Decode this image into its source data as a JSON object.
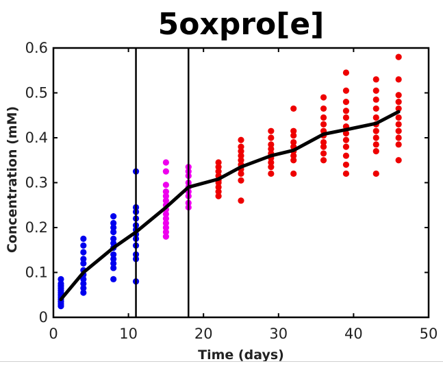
{
  "chart_data": {
    "type": "scatter",
    "title": "5oxpro[e]",
    "xlabel": "Time (days)",
    "ylabel": "Concentration (mM)",
    "xlim": [
      0,
      50
    ],
    "ylim": [
      0,
      0.6
    ],
    "xticks": [
      0,
      10,
      20,
      30,
      40,
      50
    ],
    "yticks": [
      0,
      0.1,
      0.2,
      0.3,
      0.4,
      0.5,
      0.6
    ],
    "xtick_labels": [
      "0",
      "10",
      "20",
      "30",
      "40",
      "50"
    ],
    "ytick_labels": [
      "0",
      "0.1",
      "0.2",
      "0.3",
      "0.4",
      "0.5",
      "0.6"
    ],
    "grid": false,
    "vertical_lines": [
      11,
      18
    ],
    "colors": {
      "phase1": "#0000ee",
      "phase2": "#ee00ee",
      "phase3": "#ee0000",
      "mean_line": "#000000"
    },
    "scatter_groups": [
      {
        "color_key": "phase1",
        "points": [
          [
            1,
            0.085
          ],
          [
            1,
            0.075
          ],
          [
            1,
            0.07
          ],
          [
            1,
            0.065
          ],
          [
            1,
            0.06
          ],
          [
            1,
            0.055
          ],
          [
            1,
            0.05
          ],
          [
            1,
            0.045
          ],
          [
            1,
            0.04
          ],
          [
            1,
            0.035
          ],
          [
            1,
            0.03
          ],
          [
            1,
            0.025
          ],
          [
            4,
            0.175
          ],
          [
            4,
            0.16
          ],
          [
            4,
            0.145
          ],
          [
            4,
            0.13
          ],
          [
            4,
            0.12
          ],
          [
            4,
            0.105
          ],
          [
            4,
            0.095
          ],
          [
            4,
            0.085
          ],
          [
            4,
            0.075
          ],
          [
            4,
            0.065
          ],
          [
            4,
            0.055
          ],
          [
            8,
            0.225
          ],
          [
            8,
            0.21
          ],
          [
            8,
            0.2
          ],
          [
            8,
            0.19
          ],
          [
            8,
            0.175
          ],
          [
            8,
            0.165
          ],
          [
            8,
            0.155
          ],
          [
            8,
            0.14
          ],
          [
            8,
            0.13
          ],
          [
            8,
            0.12
          ],
          [
            8,
            0.11
          ],
          [
            8,
            0.085
          ],
          [
            11,
            0.325
          ],
          [
            11,
            0.245
          ],
          [
            11,
            0.235
          ],
          [
            11,
            0.22
          ],
          [
            11,
            0.205
          ],
          [
            11,
            0.195
          ],
          [
            11,
            0.185
          ],
          [
            11,
            0.175
          ],
          [
            11,
            0.16
          ],
          [
            11,
            0.14
          ],
          [
            11,
            0.13
          ],
          [
            11,
            0.08
          ]
        ]
      },
      {
        "color_key": "phase2",
        "points": [
          [
            15,
            0.345
          ],
          [
            15,
            0.325
          ],
          [
            15,
            0.295
          ],
          [
            15,
            0.28
          ],
          [
            15,
            0.27
          ],
          [
            15,
            0.26
          ],
          [
            15,
            0.25
          ],
          [
            15,
            0.24
          ],
          [
            15,
            0.23
          ],
          [
            15,
            0.22
          ],
          [
            15,
            0.21
          ],
          [
            15,
            0.2
          ],
          [
            15,
            0.19
          ],
          [
            15,
            0.18
          ],
          [
            18,
            0.335
          ],
          [
            18,
            0.325
          ],
          [
            18,
            0.315
          ],
          [
            18,
            0.3
          ],
          [
            18,
            0.29
          ],
          [
            18,
            0.28
          ],
          [
            18,
            0.27
          ],
          [
            18,
            0.255
          ],
          [
            18,
            0.245
          ]
        ]
      },
      {
        "color_key": "phase3",
        "points": [
          [
            22,
            0.345
          ],
          [
            22,
            0.335
          ],
          [
            22,
            0.325
          ],
          [
            22,
            0.315
          ],
          [
            22,
            0.305
          ],
          [
            22,
            0.3
          ],
          [
            22,
            0.29
          ],
          [
            22,
            0.28
          ],
          [
            22,
            0.27
          ],
          [
            25,
            0.395
          ],
          [
            25,
            0.38
          ],
          [
            25,
            0.37
          ],
          [
            25,
            0.36
          ],
          [
            25,
            0.35
          ],
          [
            25,
            0.34
          ],
          [
            25,
            0.33
          ],
          [
            25,
            0.32
          ],
          [
            25,
            0.305
          ],
          [
            25,
            0.26
          ],
          [
            29,
            0.415
          ],
          [
            29,
            0.4
          ],
          [
            29,
            0.385
          ],
          [
            29,
            0.375
          ],
          [
            29,
            0.365
          ],
          [
            29,
            0.355
          ],
          [
            29,
            0.345
          ],
          [
            29,
            0.335
          ],
          [
            29,
            0.32
          ],
          [
            32,
            0.465
          ],
          [
            32,
            0.415
          ],
          [
            32,
            0.405
          ],
          [
            32,
            0.39
          ],
          [
            32,
            0.38
          ],
          [
            32,
            0.37
          ],
          [
            32,
            0.36
          ],
          [
            32,
            0.35
          ],
          [
            32,
            0.32
          ],
          [
            36,
            0.49
          ],
          [
            36,
            0.465
          ],
          [
            36,
            0.445
          ],
          [
            36,
            0.43
          ],
          [
            36,
            0.415
          ],
          [
            36,
            0.405
          ],
          [
            36,
            0.39
          ],
          [
            36,
            0.38
          ],
          [
            36,
            0.365
          ],
          [
            36,
            0.35
          ],
          [
            39,
            0.545
          ],
          [
            39,
            0.505
          ],
          [
            39,
            0.48
          ],
          [
            39,
            0.46
          ],
          [
            39,
            0.445
          ],
          [
            39,
            0.425
          ],
          [
            39,
            0.41
          ],
          [
            39,
            0.395
          ],
          [
            39,
            0.38
          ],
          [
            39,
            0.36
          ],
          [
            39,
            0.34
          ],
          [
            39,
            0.32
          ],
          [
            43,
            0.53
          ],
          [
            43,
            0.505
          ],
          [
            43,
            0.485
          ],
          [
            43,
            0.465
          ],
          [
            43,
            0.445
          ],
          [
            43,
            0.43
          ],
          [
            43,
            0.415
          ],
          [
            43,
            0.4
          ],
          [
            43,
            0.385
          ],
          [
            43,
            0.37
          ],
          [
            43,
            0.32
          ],
          [
            46,
            0.58
          ],
          [
            46,
            0.53
          ],
          [
            46,
            0.495
          ],
          [
            46,
            0.48
          ],
          [
            46,
            0.465
          ],
          [
            46,
            0.445
          ],
          [
            46,
            0.43
          ],
          [
            46,
            0.415
          ],
          [
            46,
            0.4
          ],
          [
            46,
            0.385
          ],
          [
            46,
            0.35
          ]
        ]
      }
    ],
    "mean_line": {
      "x": [
        1,
        4,
        8,
        11,
        15,
        18,
        22,
        25,
        29,
        32,
        36,
        39,
        43,
        46
      ],
      "y": [
        0.04,
        0.1,
        0.155,
        0.19,
        0.245,
        0.29,
        0.308,
        0.335,
        0.36,
        0.372,
        0.408,
        0.418,
        0.432,
        0.458
      ]
    }
  }
}
